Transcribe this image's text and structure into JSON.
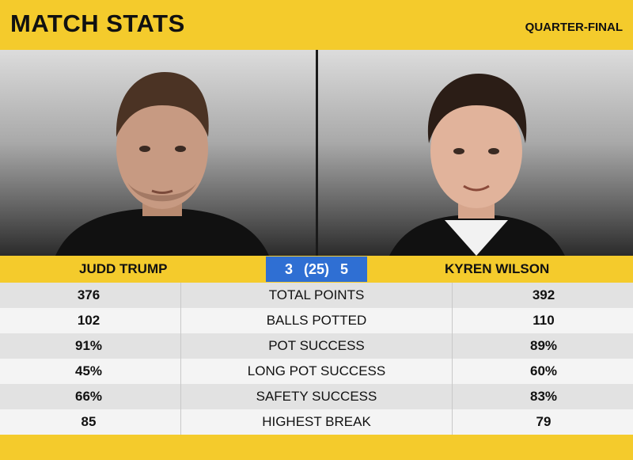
{
  "header": {
    "title": "MATCH STATS",
    "round": "QUARTER-FINAL"
  },
  "players": {
    "left": {
      "name": "JUDD TRUMP",
      "frames": "3"
    },
    "right": {
      "name": "KYREN WILSON",
      "frames": "5"
    }
  },
  "score": {
    "best_of": "(25)"
  },
  "stats": [
    {
      "label": "TOTAL POINTS",
      "left": "376",
      "right": "392"
    },
    {
      "label": "BALLS POTTED",
      "left": "102",
      "right": "110"
    },
    {
      "label": "POT SUCCESS",
      "left": "91%",
      "right": "89%"
    },
    {
      "label": "LONG POT SUCCESS",
      "left": "45%",
      "right": "60%"
    },
    {
      "label": "SAFETY SUCCESS",
      "left": "66%",
      "right": "83%"
    },
    {
      "label": "HIGHEST BREAK",
      "left": "85",
      "right": "79"
    }
  ],
  "colors": {
    "accent_yellow": "#f4cb2c",
    "score_blue": "#2f6fd3"
  }
}
